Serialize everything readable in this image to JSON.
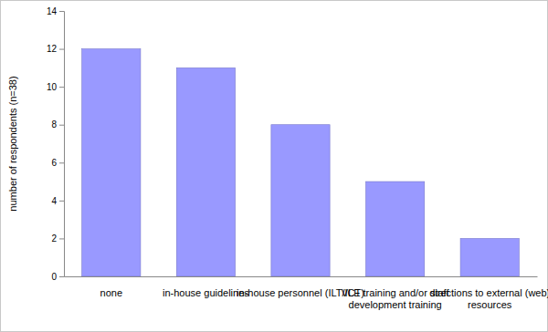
{
  "chart_data": {
    "type": "bar",
    "y_label": "number of respondents (n=38)",
    "categories": [
      "none",
      "in-house guidelines",
      "in-house personnel (ILT/ICT)",
      "VLE training and/or staff development training",
      "directions to external (web) resources"
    ],
    "values": [
      12,
      11,
      8,
      5,
      2
    ],
    "color": "#9999ff",
    "ylim": [
      0,
      14
    ],
    "yticks": [
      0,
      2,
      4,
      6,
      8,
      10,
      12,
      14
    ],
    "grid": false
  }
}
